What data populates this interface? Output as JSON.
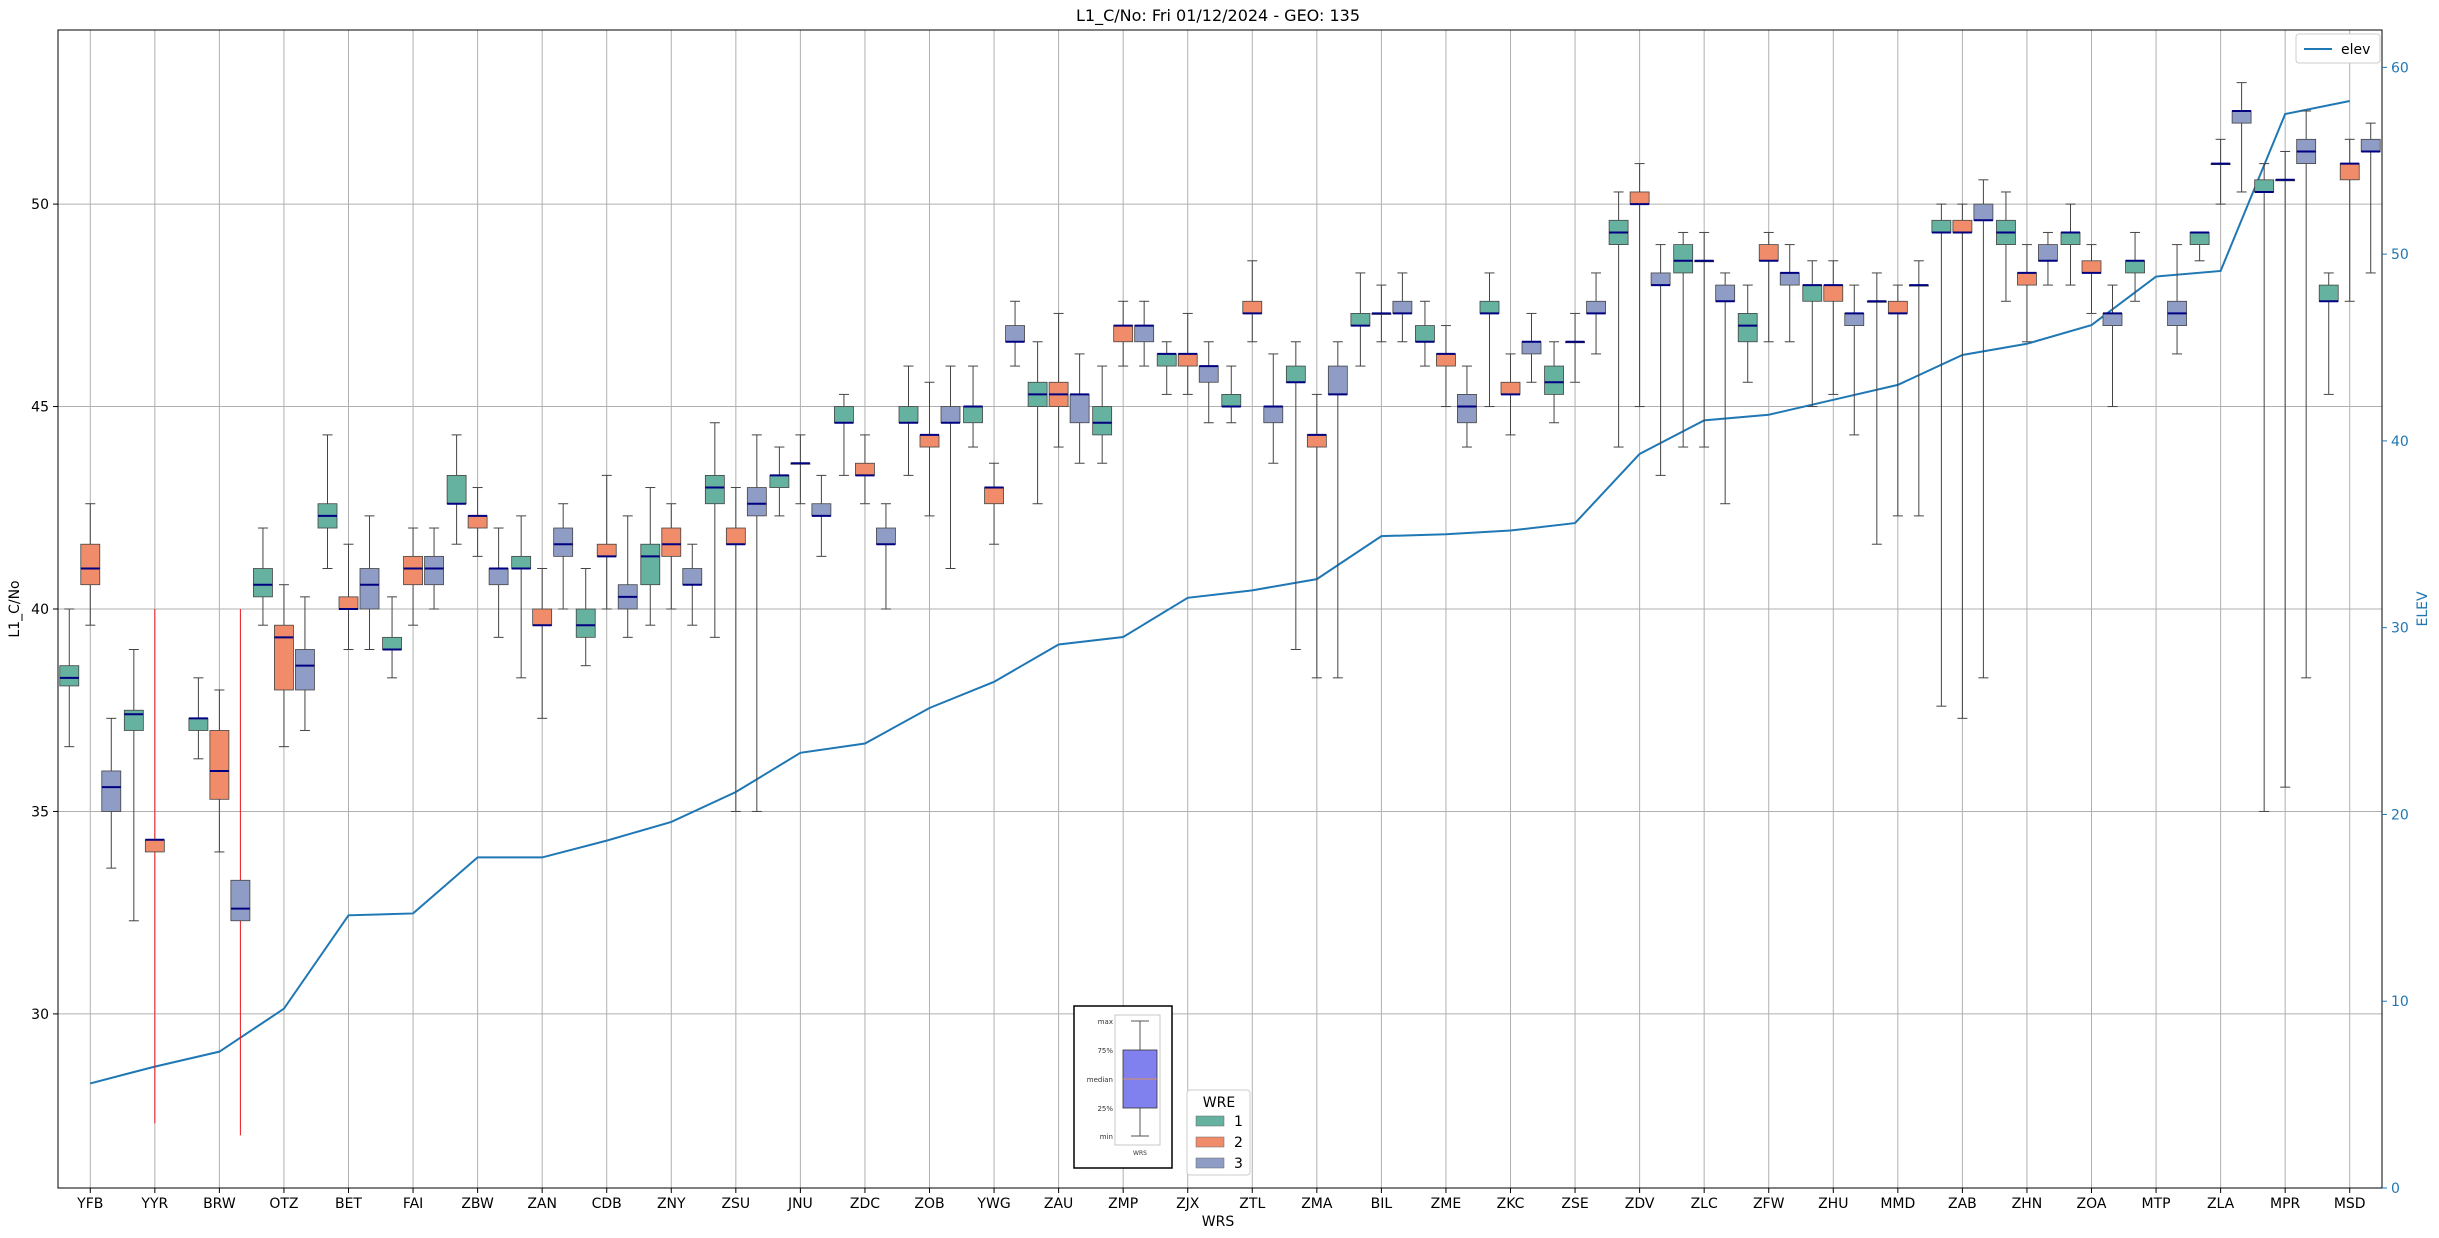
{
  "chart_data": {
    "type": "box",
    "title": "L1_C/No: Fri 01/12/2024 - GEO: 135",
    "xlabel": "WRS",
    "ylabel": "L1_C/No",
    "y2label": "ELEV",
    "ylim": [
      25.7,
      54.3
    ],
    "y2lim": [
      0,
      62
    ],
    "yticks": [
      30,
      35,
      40,
      45,
      50
    ],
    "y2ticks": [
      0,
      10,
      20,
      30,
      40,
      50,
      60
    ],
    "grid": true,
    "categories": [
      "YFB",
      "YYR",
      "BRW",
      "OTZ",
      "BET",
      "FAI",
      "ZBW",
      "ZAN",
      "CDB",
      "ZNY",
      "ZSU",
      "JNU",
      "ZDC",
      "ZOB",
      "YWG",
      "ZAU",
      "ZMP",
      "ZJX",
      "ZTL",
      "ZMA",
      "BIL",
      "ZME",
      "ZKC",
      "ZSE",
      "ZDV",
      "ZLC",
      "ZFW",
      "ZHU",
      "MMD",
      "ZAB",
      "ZHN",
      "ZOA",
      "MTP",
      "ZLA",
      "MPR",
      "MSD"
    ],
    "wre_colors": {
      "1": "#66b2a0",
      "2": "#f08c6a",
      "3": "#8f9dc6"
    },
    "boxes": [
      {
        "site": "YFB",
        "wre": 1,
        "min": 36.6,
        "q1": 38.1,
        "median": 38.3,
        "q3": 38.6,
        "max": 40.0
      },
      {
        "site": "YFB",
        "wre": 2,
        "min": 39.6,
        "q1": 40.6,
        "median": 41.0,
        "q3": 41.6,
        "max": 42.6
      },
      {
        "site": "YFB",
        "wre": 3,
        "min": 33.6,
        "q1": 35.0,
        "median": 35.6,
        "q3": 36.0,
        "max": 37.3
      },
      {
        "site": "YYR",
        "wre": 1,
        "min": 32.3,
        "q1": 37.0,
        "median": 37.4,
        "q3": 37.5,
        "max": 39.0
      },
      {
        "site": "YYR",
        "wre": 2,
        "min": 27.3,
        "q1": 34.0,
        "median": 34.3,
        "q3": 34.3,
        "max": 40.0,
        "whisker": "red"
      },
      {
        "site": "BRW",
        "wre": 1,
        "min": 36.3,
        "q1": 37.0,
        "median": 37.3,
        "q3": 37.3,
        "max": 38.3
      },
      {
        "site": "BRW",
        "wre": 2,
        "min": 34.0,
        "q1": 35.3,
        "median": 36.0,
        "q3": 37.0,
        "max": 38.0
      },
      {
        "site": "BRW",
        "wre": 3,
        "min": 27.0,
        "q1": 32.3,
        "median": 32.6,
        "q3": 33.3,
        "max": 40.0,
        "whisker": "red"
      },
      {
        "site": "OTZ",
        "wre": 1,
        "min": 39.6,
        "q1": 40.3,
        "median": 40.6,
        "q3": 41.0,
        "max": 42.0
      },
      {
        "site": "OTZ",
        "wre": 2,
        "min": 36.6,
        "q1": 38.0,
        "median": 39.3,
        "q3": 39.6,
        "max": 40.6
      },
      {
        "site": "OTZ",
        "wre": 3,
        "min": 37.0,
        "q1": 38.0,
        "median": 38.6,
        "q3": 39.0,
        "max": 40.3
      },
      {
        "site": "BET",
        "wre": 1,
        "min": 41.0,
        "q1": 42.0,
        "median": 42.3,
        "q3": 42.6,
        "max": 44.3
      },
      {
        "site": "BET",
        "wre": 2,
        "min": 39.0,
        "q1": 40.0,
        "median": 40.0,
        "q3": 40.3,
        "max": 41.6
      },
      {
        "site": "BET",
        "wre": 3,
        "min": 39.0,
        "q1": 40.0,
        "median": 40.6,
        "q3": 41.0,
        "max": 42.3
      },
      {
        "site": "FAI",
        "wre": 1,
        "min": 38.3,
        "q1": 39.0,
        "median": 39.0,
        "q3": 39.3,
        "max": 40.3
      },
      {
        "site": "FAI",
        "wre": 2,
        "min": 39.6,
        "q1": 40.6,
        "median": 41.0,
        "q3": 41.3,
        "max": 42.0
      },
      {
        "site": "FAI",
        "wre": 3,
        "min": 40.0,
        "q1": 40.6,
        "median": 41.0,
        "q3": 41.3,
        "max": 42.0
      },
      {
        "site": "ZBW",
        "wre": 1,
        "min": 41.6,
        "q1": 42.6,
        "median": 42.6,
        "q3": 43.3,
        "max": 44.3
      },
      {
        "site": "ZBW",
        "wre": 2,
        "min": 41.3,
        "q1": 42.0,
        "median": 42.3,
        "q3": 42.3,
        "max": 43.0
      },
      {
        "site": "ZBW",
        "wre": 3,
        "min": 39.3,
        "q1": 40.6,
        "median": 41.0,
        "q3": 41.0,
        "max": 42.0
      },
      {
        "site": "ZAN",
        "wre": 1,
        "min": 38.3,
        "q1": 41.0,
        "median": 41.0,
        "q3": 41.3,
        "max": 42.3
      },
      {
        "site": "ZAN",
        "wre": 2,
        "min": 37.3,
        "q1": 39.6,
        "median": 39.6,
        "q3": 40.0,
        "max": 41.0
      },
      {
        "site": "ZAN",
        "wre": 3,
        "min": 40.0,
        "q1": 41.3,
        "median": 41.6,
        "q3": 42.0,
        "max": 42.6
      },
      {
        "site": "CDB",
        "wre": 1,
        "min": 38.6,
        "q1": 39.3,
        "median": 39.6,
        "q3": 40.0,
        "max": 41.0
      },
      {
        "site": "CDB",
        "wre": 2,
        "min": 40.0,
        "q1": 41.3,
        "median": 41.3,
        "q3": 41.6,
        "max": 43.3
      },
      {
        "site": "CDB",
        "wre": 3,
        "min": 39.3,
        "q1": 40.0,
        "median": 40.3,
        "q3": 40.6,
        "max": 42.3
      },
      {
        "site": "ZNY",
        "wre": 1,
        "min": 39.6,
        "q1": 40.6,
        "median": 41.3,
        "q3": 41.6,
        "max": 43.0
      },
      {
        "site": "ZNY",
        "wre": 2,
        "min": 40.0,
        "q1": 41.3,
        "median": 41.6,
        "q3": 42.0,
        "max": 42.6
      },
      {
        "site": "ZNY",
        "wre": 3,
        "min": 39.6,
        "q1": 40.6,
        "median": 40.6,
        "q3": 41.0,
        "max": 41.6
      },
      {
        "site": "ZSU",
        "wre": 1,
        "min": 39.3,
        "q1": 42.6,
        "median": 43.0,
        "q3": 43.3,
        "max": 44.6
      },
      {
        "site": "ZSU",
        "wre": 2,
        "min": 35.0,
        "q1": 41.6,
        "median": 41.6,
        "q3": 42.0,
        "max": 43.0
      },
      {
        "site": "ZSU",
        "wre": 3,
        "min": 35.0,
        "q1": 42.3,
        "median": 42.6,
        "q3": 43.0,
        "max": 44.3
      },
      {
        "site": "JNU",
        "wre": 1,
        "min": 42.3,
        "q1": 43.0,
        "median": 43.3,
        "q3": 43.3,
        "max": 44.0
      },
      {
        "site": "JNU",
        "wre": 2,
        "min": 42.6,
        "q1": 43.6,
        "median": 43.6,
        "q3": 43.6,
        "max": 44.3
      },
      {
        "site": "JNU",
        "wre": 3,
        "min": 41.3,
        "q1": 42.3,
        "median": 42.3,
        "q3": 42.6,
        "max": 43.3
      },
      {
        "site": "ZDC",
        "wre": 1,
        "min": 43.3,
        "q1": 44.6,
        "median": 44.6,
        "q3": 45.0,
        "max": 45.3
      },
      {
        "site": "ZDC",
        "wre": 2,
        "min": 42.6,
        "q1": 43.3,
        "median": 43.3,
        "q3": 43.6,
        "max": 44.3
      },
      {
        "site": "ZDC",
        "wre": 3,
        "min": 40.0,
        "q1": 41.6,
        "median": 41.6,
        "q3": 42.0,
        "max": 42.6
      },
      {
        "site": "ZOB",
        "wre": 1,
        "min": 43.3,
        "q1": 44.6,
        "median": 44.6,
        "q3": 45.0,
        "max": 46.0
      },
      {
        "site": "ZOB",
        "wre": 2,
        "min": 42.3,
        "q1": 44.0,
        "median": 44.3,
        "q3": 44.3,
        "max": 45.6
      },
      {
        "site": "ZOB",
        "wre": 3,
        "min": 41.0,
        "q1": 44.6,
        "median": 44.6,
        "q3": 45.0,
        "max": 46.0
      },
      {
        "site": "YWG",
        "wre": 1,
        "min": 44.0,
        "q1": 44.6,
        "median": 45.0,
        "q3": 45.0,
        "max": 46.0
      },
      {
        "site": "YWG",
        "wre": 2,
        "min": 41.6,
        "q1": 42.6,
        "median": 43.0,
        "q3": 43.0,
        "max": 43.6
      },
      {
        "site": "YWG",
        "wre": 3,
        "min": 46.0,
        "q1": 46.6,
        "median": 46.6,
        "q3": 47.0,
        "max": 47.6
      },
      {
        "site": "ZAU",
        "wre": 1,
        "min": 42.6,
        "q1": 45.0,
        "median": 45.3,
        "q3": 45.6,
        "max": 46.6
      },
      {
        "site": "ZAU",
        "wre": 2,
        "min": 44.0,
        "q1": 45.0,
        "median": 45.3,
        "q3": 45.6,
        "max": 47.3
      },
      {
        "site": "ZAU",
        "wre": 3,
        "min": 43.6,
        "q1": 44.6,
        "median": 45.3,
        "q3": 45.3,
        "max": 46.3
      },
      {
        "site": "ZMP",
        "wre": 1,
        "min": 43.6,
        "q1": 44.3,
        "median": 44.6,
        "q3": 45.0,
        "max": 46.0
      },
      {
        "site": "ZMP",
        "wre": 2,
        "min": 46.0,
        "q1": 46.6,
        "median": 47.0,
        "q3": 47.0,
        "max": 47.6
      },
      {
        "site": "ZMP",
        "wre": 3,
        "min": 46.0,
        "q1": 46.6,
        "median": 47.0,
        "q3": 47.0,
        "max": 47.6
      },
      {
        "site": "ZJX",
        "wre": 1,
        "min": 45.3,
        "q1": 46.0,
        "median": 46.3,
        "q3": 46.3,
        "max": 46.6
      },
      {
        "site": "ZJX",
        "wre": 2,
        "min": 45.3,
        "q1": 46.0,
        "median": 46.3,
        "q3": 46.3,
        "max": 47.3
      },
      {
        "site": "ZJX",
        "wre": 3,
        "min": 44.6,
        "q1": 45.6,
        "median": 46.0,
        "q3": 46.0,
        "max": 46.6
      },
      {
        "site": "ZTL",
        "wre": 1,
        "min": 44.6,
        "q1": 45.0,
        "median": 45.0,
        "q3": 45.3,
        "max": 46.0
      },
      {
        "site": "ZTL",
        "wre": 2,
        "min": 46.6,
        "q1": 47.3,
        "median": 47.3,
        "q3": 47.6,
        "max": 48.6
      },
      {
        "site": "ZTL",
        "wre": 3,
        "min": 43.6,
        "q1": 44.6,
        "median": 45.0,
        "q3": 45.0,
        "max": 46.3
      },
      {
        "site": "ZMA",
        "wre": 1,
        "min": 39.0,
        "q1": 45.6,
        "median": 45.6,
        "q3": 46.0,
        "max": 46.6
      },
      {
        "site": "ZMA",
        "wre": 2,
        "min": 38.3,
        "q1": 44.0,
        "median": 44.3,
        "q3": 44.3,
        "max": 45.3
      },
      {
        "site": "ZMA",
        "wre": 3,
        "min": 38.3,
        "q1": 45.3,
        "median": 45.3,
        "q3": 46.0,
        "max": 46.6
      },
      {
        "site": "BIL",
        "wre": 1,
        "min": 46.0,
        "q1": 47.0,
        "median": 47.0,
        "q3": 47.3,
        "max": 48.3
      },
      {
        "site": "BIL",
        "wre": 2,
        "min": 46.6,
        "q1": 47.3,
        "median": 47.3,
        "q3": 47.3,
        "max": 48.0
      },
      {
        "site": "BIL",
        "wre": 3,
        "min": 46.6,
        "q1": 47.3,
        "median": 47.3,
        "q3": 47.6,
        "max": 48.3
      },
      {
        "site": "ZME",
        "wre": 1,
        "min": 46.0,
        "q1": 46.6,
        "median": 46.6,
        "q3": 47.0,
        "max": 47.6
      },
      {
        "site": "ZME",
        "wre": 2,
        "min": 45.0,
        "q1": 46.0,
        "median": 46.3,
        "q3": 46.3,
        "max": 47.0
      },
      {
        "site": "ZME",
        "wre": 3,
        "min": 44.0,
        "q1": 44.6,
        "median": 45.0,
        "q3": 45.3,
        "max": 46.0
      },
      {
        "site": "ZKC",
        "wre": 1,
        "min": 45.0,
        "q1": 47.3,
        "median": 47.3,
        "q3": 47.6,
        "max": 48.3
      },
      {
        "site": "ZKC",
        "wre": 2,
        "min": 44.3,
        "q1": 45.3,
        "median": 45.3,
        "q3": 45.6,
        "max": 46.3
      },
      {
        "site": "ZKC",
        "wre": 3,
        "min": 45.6,
        "q1": 46.3,
        "median": 46.6,
        "q3": 46.6,
        "max": 47.3
      },
      {
        "site": "ZSE",
        "wre": 1,
        "min": 44.6,
        "q1": 45.3,
        "median": 45.6,
        "q3": 46.0,
        "max": 46.6
      },
      {
        "site": "ZSE",
        "wre": 2,
        "min": 45.6,
        "q1": 46.6,
        "median": 46.6,
        "q3": 46.6,
        "max": 47.3
      },
      {
        "site": "ZSE",
        "wre": 3,
        "min": 46.3,
        "q1": 47.3,
        "median": 47.3,
        "q3": 47.6,
        "max": 48.3
      },
      {
        "site": "ZDV",
        "wre": 1,
        "min": 44.0,
        "q1": 49.0,
        "median": 49.3,
        "q3": 49.6,
        "max": 50.3
      },
      {
        "site": "ZDV",
        "wre": 2,
        "min": 45.0,
        "q1": 50.0,
        "median": 50.0,
        "q3": 50.3,
        "max": 51.0
      },
      {
        "site": "ZDV",
        "wre": 3,
        "min": 43.3,
        "q1": 48.0,
        "median": 48.0,
        "q3": 48.3,
        "max": 49.0
      },
      {
        "site": "ZLC",
        "wre": 1,
        "min": 44.0,
        "q1": 48.3,
        "median": 48.6,
        "q3": 49.0,
        "max": 49.3
      },
      {
        "site": "ZLC",
        "wre": 2,
        "min": 44.0,
        "q1": 48.6,
        "median": 48.6,
        "q3": 48.6,
        "max": 49.3
      },
      {
        "site": "ZLC",
        "wre": 3,
        "min": 42.6,
        "q1": 47.6,
        "median": 47.6,
        "q3": 48.0,
        "max": 48.3
      },
      {
        "site": "ZFW",
        "wre": 1,
        "min": 45.6,
        "q1": 46.6,
        "median": 47.0,
        "q3": 47.3,
        "max": 48.0
      },
      {
        "site": "ZFW",
        "wre": 2,
        "min": 46.6,
        "q1": 48.6,
        "median": 48.6,
        "q3": 49.0,
        "max": 49.3
      },
      {
        "site": "ZFW",
        "wre": 3,
        "min": 46.6,
        "q1": 48.0,
        "median": 48.3,
        "q3": 48.3,
        "max": 49.0
      },
      {
        "site": "ZHU",
        "wre": 1,
        "min": 45.0,
        "q1": 47.6,
        "median": 48.0,
        "q3": 48.0,
        "max": 48.6
      },
      {
        "site": "ZHU",
        "wre": 2,
        "min": 45.3,
        "q1": 47.6,
        "median": 48.0,
        "q3": 48.0,
        "max": 48.6
      },
      {
        "site": "ZHU",
        "wre": 3,
        "min": 44.3,
        "q1": 47.0,
        "median": 47.3,
        "q3": 47.3,
        "max": 48.0
      },
      {
        "site": "MMD",
        "wre": 1,
        "min": 41.6,
        "q1": 47.6,
        "median": 47.6,
        "q3": 47.6,
        "max": 48.3
      },
      {
        "site": "MMD",
        "wre": 2,
        "min": 42.3,
        "q1": 47.3,
        "median": 47.3,
        "q3": 47.6,
        "max": 48.0
      },
      {
        "site": "MMD",
        "wre": 3,
        "min": 42.3,
        "q1": 48.0,
        "median": 48.0,
        "q3": 48.0,
        "max": 48.6
      },
      {
        "site": "ZAB",
        "wre": 1,
        "min": 37.6,
        "q1": 49.3,
        "median": 49.3,
        "q3": 49.6,
        "max": 50.0
      },
      {
        "site": "ZAB",
        "wre": 2,
        "min": 37.3,
        "q1": 49.3,
        "median": 49.3,
        "q3": 49.6,
        "max": 50.0
      },
      {
        "site": "ZAB",
        "wre": 3,
        "min": 38.3,
        "q1": 49.6,
        "median": 49.6,
        "q3": 50.0,
        "max": 50.6
      },
      {
        "site": "ZHN",
        "wre": 1,
        "min": 47.6,
        "q1": 49.0,
        "median": 49.3,
        "q3": 49.6,
        "max": 50.3
      },
      {
        "site": "ZHN",
        "wre": 2,
        "min": 46.6,
        "q1": 48.0,
        "median": 48.3,
        "q3": 48.3,
        "max": 49.0
      },
      {
        "site": "ZHN",
        "wre": 3,
        "min": 48.0,
        "q1": 48.6,
        "median": 48.6,
        "q3": 49.0,
        "max": 49.3
      },
      {
        "site": "ZOA",
        "wre": 1,
        "min": 48.0,
        "q1": 49.0,
        "median": 49.3,
        "q3": 49.3,
        "max": 50.0
      },
      {
        "site": "ZOA",
        "wre": 2,
        "min": 47.3,
        "q1": 48.3,
        "median": 48.3,
        "q3": 48.6,
        "max": 49.0
      },
      {
        "site": "ZOA",
        "wre": 3,
        "min": 45.0,
        "q1": 47.0,
        "median": 47.3,
        "q3": 47.3,
        "max": 48.0
      },
      {
        "site": "MTP",
        "wre": 1,
        "min": 47.6,
        "q1": 48.3,
        "median": 48.6,
        "q3": 48.6,
        "max": 49.3
      },
      {
        "site": "MTP",
        "wre": 3,
        "min": 46.3,
        "q1": 47.0,
        "median": 47.3,
        "q3": 47.6,
        "max": 49.0
      },
      {
        "site": "ZLA",
        "wre": 1,
        "min": 48.6,
        "q1": 49.0,
        "median": 49.3,
        "q3": 49.3,
        "max": 49.3
      },
      {
        "site": "ZLA",
        "wre": 2,
        "min": 50.0,
        "q1": 51.0,
        "median": 51.0,
        "q3": 51.0,
        "max": 51.6
      },
      {
        "site": "ZLA",
        "wre": 3,
        "min": 50.3,
        "q1": 52.0,
        "median": 52.3,
        "q3": 52.3,
        "max": 53.0
      },
      {
        "site": "MPR",
        "wre": 1,
        "min": 35.0,
        "q1": 50.3,
        "median": 50.3,
        "q3": 50.6,
        "max": 51.0
      },
      {
        "site": "MPR",
        "wre": 2,
        "min": 35.6,
        "q1": 50.6,
        "median": 50.6,
        "q3": 50.6,
        "max": 51.3
      },
      {
        "site": "MPR",
        "wre": 3,
        "min": 38.3,
        "q1": 51.0,
        "median": 51.3,
        "q3": 51.6,
        "max": 52.3
      },
      {
        "site": "MSD",
        "wre": 1,
        "min": 45.3,
        "q1": 47.6,
        "median": 47.6,
        "q3": 48.0,
        "max": 48.3
      },
      {
        "site": "MSD",
        "wre": 2,
        "min": 47.6,
        "q1": 50.6,
        "median": 51.0,
        "q3": 51.0,
        "max": 51.6
      },
      {
        "site": "MSD",
        "wre": 3,
        "min": 48.3,
        "q1": 51.3,
        "median": 51.3,
        "q3": 51.6,
        "max": 52.0
      }
    ],
    "elev_series": {
      "name": "elev",
      "axis": "right",
      "color": "#1f77b4",
      "values": [
        5.6,
        6.5,
        7.3,
        9.6,
        14.6,
        14.7,
        17.7,
        17.7,
        18.6,
        19.6,
        21.2,
        23.3,
        23.8,
        25.7,
        27.1,
        29.1,
        29.5,
        31.6,
        32.0,
        32.6,
        34.9,
        35.0,
        35.2,
        35.6,
        39.3,
        41.1,
        41.4,
        42.2,
        43.0,
        44.6,
        45.2,
        46.2,
        48.8,
        49.1,
        57.5,
        58.2
      ]
    },
    "legend_elev": {
      "label": "elev",
      "placement": "top-right"
    },
    "legend_wre": {
      "title": "WRE",
      "entries": [
        "1",
        "2",
        "3"
      ],
      "placement": "bottom-center"
    },
    "key_box_labels": [
      "max",
      "75%",
      "median",
      "25%",
      "min",
      "WRS"
    ]
  }
}
